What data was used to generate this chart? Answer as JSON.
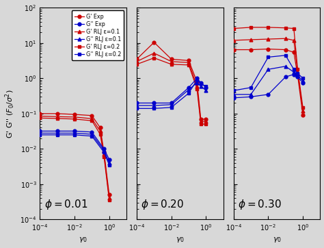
{
  "legend_entries": [
    {
      "label": "G' Exp",
      "color": "#cc0000",
      "marker": "o",
      "linestyle": "-"
    },
    {
      "label": "G'' Exp",
      "color": "#0000cc",
      "marker": "o",
      "linestyle": "-"
    },
    {
      "label": "G' RLJ ε=0.1",
      "color": "#cc0000",
      "marker": "^",
      "linestyle": "-"
    },
    {
      "label": "G'' RLJ ε=0.1",
      "color": "#0000cc",
      "marker": "^",
      "linestyle": "-"
    },
    {
      "label": "G' RLJ ε=0.2",
      "color": "#cc0000",
      "marker": "s",
      "linestyle": "-"
    },
    {
      "label": "G'' RLJ ε=0.2",
      "color": "#0000cc",
      "marker": "s",
      "linestyle": "-"
    }
  ],
  "panel0": {
    "Gp_exp_x": [
      0.0001,
      0.001,
      0.01,
      0.1,
      0.3,
      0.5,
      1.0
    ],
    "Gp_exp_y": [
      0.1,
      0.1,
      0.095,
      0.088,
      0.04,
      0.008,
      0.0005
    ],
    "Gpp_exp_x": [
      0.0001,
      0.001,
      0.01,
      0.1,
      0.5,
      1.0
    ],
    "Gpp_exp_y": [
      0.032,
      0.032,
      0.032,
      0.03,
      0.01,
      0.005
    ],
    "Gp_rlj01_x": [
      0.0001,
      0.001,
      0.01,
      0.1,
      0.3,
      0.5,
      1.0
    ],
    "Gp_rlj01_y": [
      0.085,
      0.082,
      0.08,
      0.072,
      0.032,
      0.007,
      0.0004
    ],
    "Gpp_rlj01_x": [
      0.0001,
      0.001,
      0.01,
      0.1,
      0.5,
      1.0
    ],
    "Gpp_rlj01_y": [
      0.028,
      0.028,
      0.028,
      0.026,
      0.009,
      0.004
    ],
    "Gp_rlj02_x": [
      0.0001,
      0.001,
      0.01,
      0.1,
      0.3,
      0.5,
      1.0
    ],
    "Gp_rlj02_y": [
      0.075,
      0.073,
      0.07,
      0.063,
      0.026,
      0.006,
      0.00035
    ],
    "Gpp_rlj02_x": [
      0.0001,
      0.001,
      0.01,
      0.1,
      0.5,
      1.0
    ],
    "Gpp_rlj02_y": [
      0.025,
      0.025,
      0.025,
      0.023,
      0.008,
      0.0035
    ]
  },
  "panel1": {
    "Gp_exp_x": [
      0.0001,
      0.001,
      0.01,
      0.1,
      0.3,
      0.5,
      1.0
    ],
    "Gp_exp_y": [
      3.5,
      10.5,
      3.5,
      3.2,
      0.8,
      0.07,
      0.07
    ],
    "Gp_rlj01_x": [
      0.0001,
      0.001,
      0.01,
      0.1,
      0.3,
      0.5,
      1.0
    ],
    "Gp_rlj01_y": [
      3.0,
      5.2,
      3.0,
      2.8,
      0.6,
      0.06,
      0.06
    ],
    "Gp_rlj02_x": [
      0.0001,
      0.001,
      0.01,
      0.1,
      0.3,
      0.5,
      1.0
    ],
    "Gp_rlj02_y": [
      2.5,
      3.8,
      2.5,
      2.4,
      0.5,
      0.05,
      0.05
    ],
    "Gpp_exp_x": [
      0.0001,
      0.001,
      0.01,
      0.1,
      0.3,
      0.5,
      1.0
    ],
    "Gpp_exp_y": [
      0.2,
      0.2,
      0.2,
      0.55,
      1.0,
      0.75,
      0.55
    ],
    "Gpp_rlj01_x": [
      0.0001,
      0.001,
      0.01,
      0.1,
      0.3,
      0.5,
      1.0
    ],
    "Gpp_rlj01_y": [
      0.17,
      0.17,
      0.18,
      0.48,
      0.75,
      0.6,
      0.45
    ],
    "Gpp_rlj02_x": [
      0.0001,
      0.001,
      0.01,
      0.1,
      0.3,
      0.5,
      1.0
    ],
    "Gpp_rlj02_y": [
      0.14,
      0.14,
      0.15,
      0.38,
      0.9,
      0.7,
      0.6
    ]
  },
  "panel2": {
    "Gp_exp_x": [
      0.0001,
      0.001,
      0.01,
      0.1,
      0.3,
      0.5,
      1.0
    ],
    "Gp_exp_y": [
      6.5,
      6.5,
      6.8,
      6.5,
      5.5,
      1.2,
      0.09
    ],
    "Gp_rlj01_x": [
      0.0001,
      0.001,
      0.01,
      0.1,
      0.3,
      0.5,
      1.0
    ],
    "Gp_rlj01_y": [
      12.0,
      12.5,
      13.0,
      13.5,
      12.0,
      1.5,
      0.12
    ],
    "Gp_rlj02_x": [
      0.0001,
      0.001,
      0.01,
      0.1,
      0.3,
      0.5,
      1.0
    ],
    "Gp_rlj02_y": [
      26.0,
      28.0,
      28.0,
      27.0,
      26.0,
      1.8,
      0.15
    ],
    "Gpp_exp_x": [
      0.0001,
      0.001,
      0.01,
      0.1,
      0.3,
      0.5,
      1.0
    ],
    "Gpp_exp_y": [
      0.28,
      0.3,
      0.35,
      1.1,
      1.3,
      1.1,
      0.75
    ],
    "Gpp_rlj01_x": [
      0.0001,
      0.001,
      0.01,
      0.1,
      0.3,
      0.5,
      1.0
    ],
    "Gpp_rlj01_y": [
      0.35,
      0.35,
      1.8,
      2.2,
      1.5,
      1.2,
      0.85
    ],
    "Gpp_rlj02_x": [
      0.0001,
      0.001,
      0.01,
      0.1,
      0.3,
      0.5,
      1.0
    ],
    "Gpp_rlj02_y": [
      0.45,
      0.55,
      4.0,
      4.5,
      1.8,
      1.4,
      1.0
    ]
  },
  "ylabel": "G' G'' $(F_0/\\sigma^2)$",
  "xlabel": "$\\gamma_0$",
  "xlim": [
    0.0001,
    10
  ],
  "ylim": [
    0.0001,
    100.0
  ],
  "bg_color": "#d8d8d8",
  "label_fontsize": 8,
  "tick_fontsize": 7,
  "phi_fontsize": 11,
  "legend_fontsize": 5.8,
  "ms": 3.5,
  "lw": 0.9
}
